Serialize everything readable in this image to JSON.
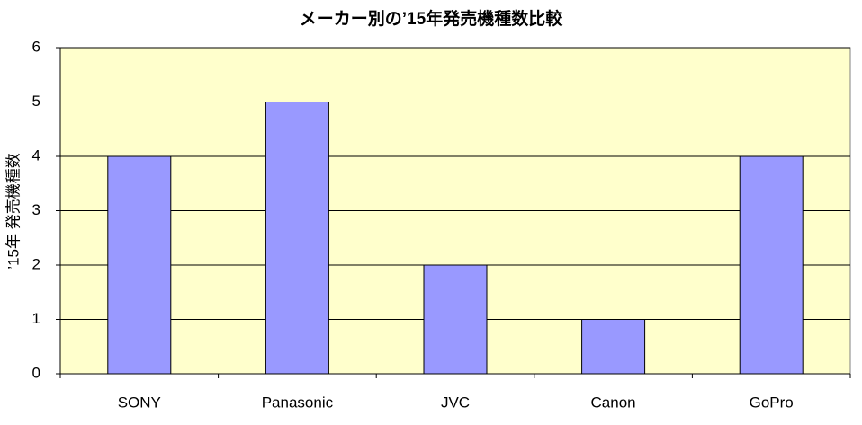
{
  "chart_data": {
    "type": "bar",
    "title": "メーカー別の’15年発売機種数比較",
    "y_label": "’15年 発売機種数",
    "categories": [
      "SONY",
      "Panasonic",
      "JVC",
      "Canon",
      "GoPro"
    ],
    "values": [
      4,
      5,
      2,
      1,
      4
    ],
    "color": "#9999ff",
    "background": "#ffffcc",
    "ylim": [
      0,
      6
    ],
    "yticks": [
      0,
      1,
      2,
      3,
      4,
      5,
      6
    ],
    "grid": true
  }
}
